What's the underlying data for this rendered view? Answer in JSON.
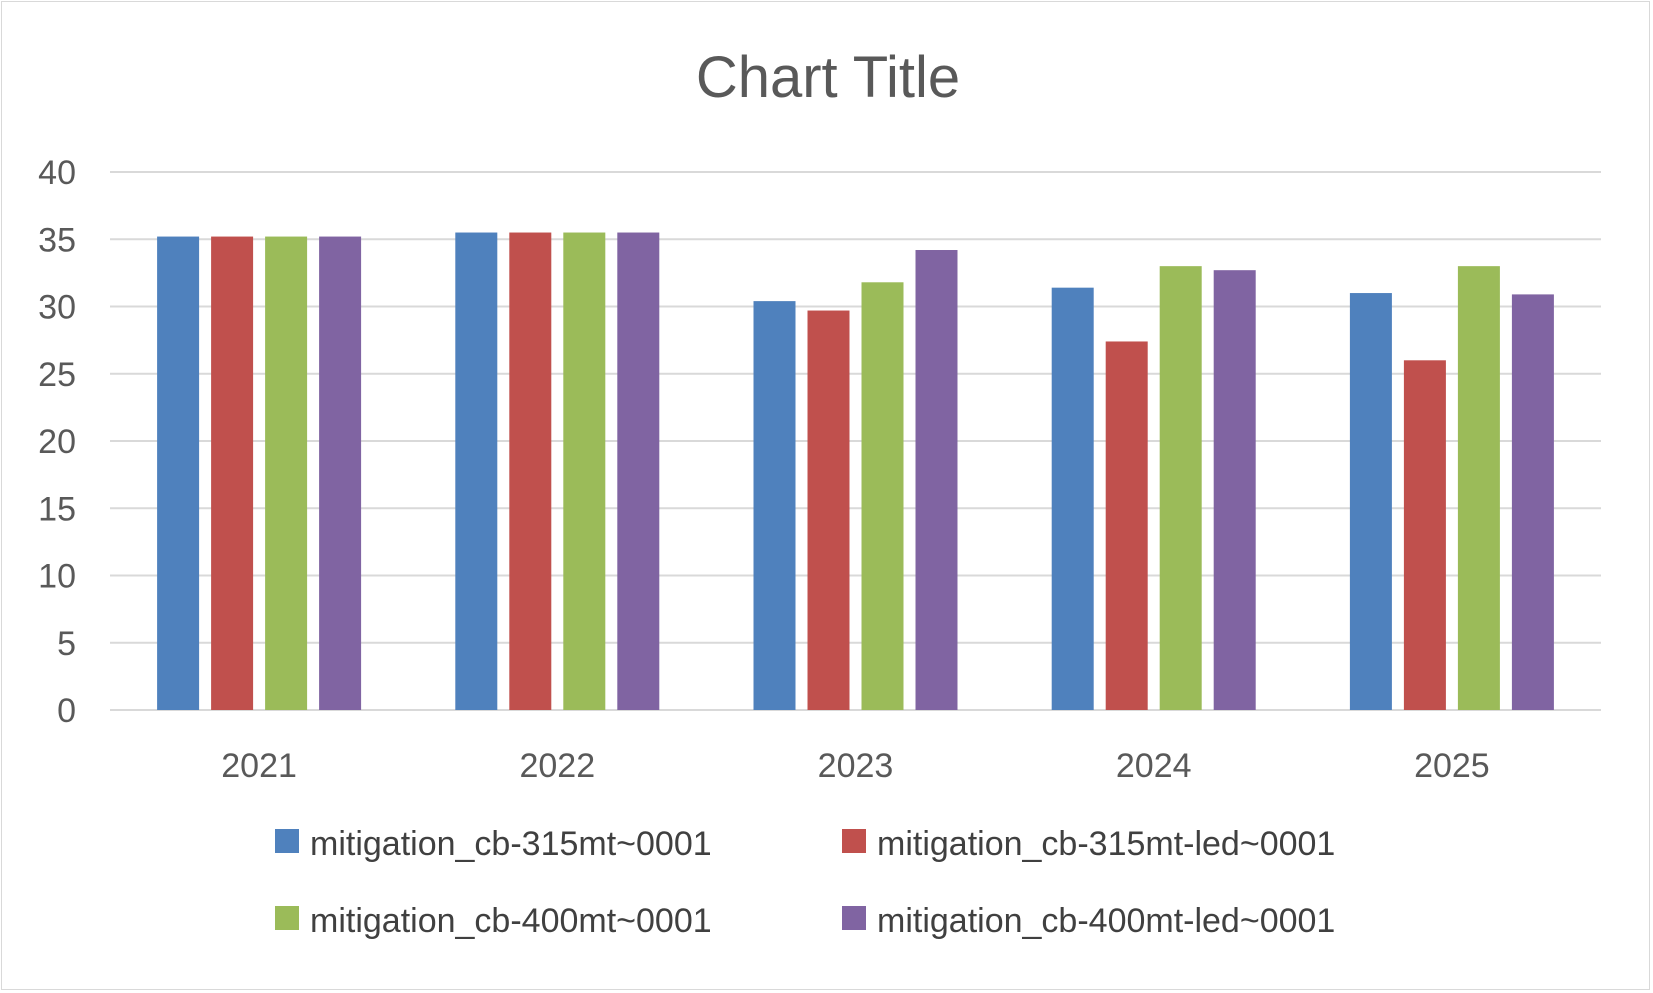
{
  "chart_data": {
    "type": "bar",
    "title": "Chart Title",
    "xlabel": "",
    "ylabel": "",
    "categories": [
      "2021",
      "2022",
      "2023",
      "2024",
      "2025"
    ],
    "ylim": [
      0,
      40
    ],
    "yticks": [
      0,
      5,
      10,
      15,
      20,
      25,
      30,
      35,
      40
    ],
    "grid": true,
    "legend_position": "bottom",
    "series": [
      {
        "name": "mitigation_cb-315mt~0001",
        "color": "#4f81bd",
        "values": [
          35.2,
          35.5,
          30.4,
          31.4,
          31.0
        ]
      },
      {
        "name": "mitigation_cb-315mt-led~0001",
        "color": "#c0504d",
        "values": [
          35.2,
          35.5,
          29.7,
          27.4,
          26.0
        ]
      },
      {
        "name": "mitigation_cb-400mt~0001",
        "color": "#9bbb59",
        "values": [
          35.2,
          35.5,
          31.8,
          33.0,
          33.0
        ]
      },
      {
        "name": "mitigation_cb-400mt-led~0001",
        "color": "#8064a2",
        "values": [
          35.2,
          35.5,
          34.2,
          32.7,
          30.9
        ]
      }
    ]
  }
}
